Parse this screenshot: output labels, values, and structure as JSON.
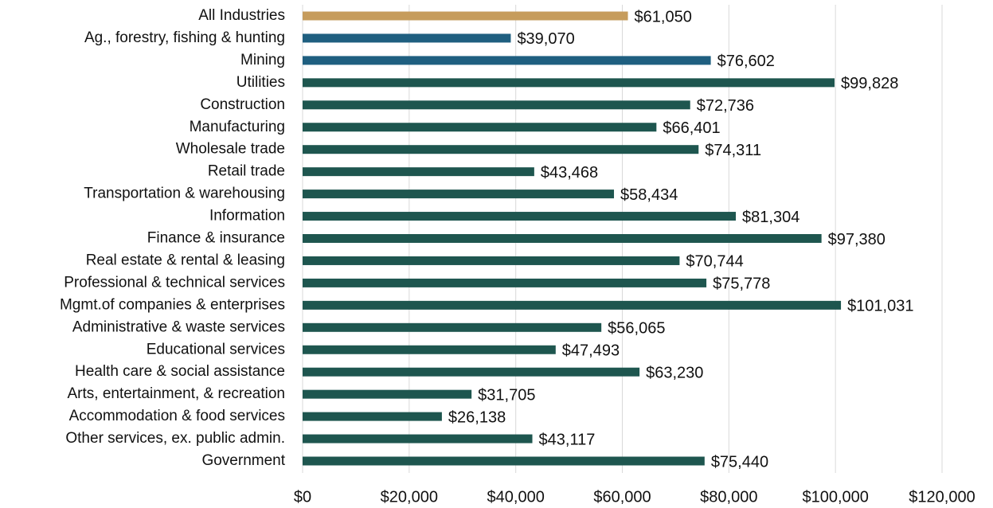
{
  "chart_data": {
    "type": "bar",
    "orientation": "horizontal",
    "categories": [
      "All Industries",
      "Ag., forestry, fishing & hunting",
      "Mining",
      "Utilities",
      "Construction",
      "Manufacturing",
      "Wholesale trade",
      "Retail trade",
      "Transportation & warehousing",
      "Information",
      "Finance & insurance",
      "Real estate & rental & leasing",
      "Professional & technical services",
      "Mgmt.of companies & enterprises",
      "Administrative & waste services",
      "Educational services",
      "Health care & social assistance",
      "Arts, entertainment, & recreation",
      "Accommodation & food services",
      "Other services, ex. public admin.",
      "Government"
    ],
    "values": [
      61050,
      39070,
      76602,
      99828,
      72736,
      66401,
      74311,
      43468,
      58434,
      81304,
      97380,
      70744,
      75778,
      101031,
      56065,
      47493,
      63230,
      31705,
      26138,
      43117,
      75440
    ],
    "value_labels": [
      "$61,050",
      "$39,070",
      "$76,602",
      "$99,828",
      "$72,736",
      "$66,401",
      "$74,311",
      "$43,468",
      "$58,434",
      "$81,304",
      "$97,380",
      "$70,744",
      "$75,778",
      "$101,031",
      "$56,065",
      "$47,493",
      "$63,230",
      "$31,705",
      "$26,138",
      "$43,117",
      "$75,440"
    ],
    "colors": [
      "#c69c5c",
      "#1f5f80",
      "#1f5f80",
      "#1e564f",
      "#1e564f",
      "#1e564f",
      "#1e564f",
      "#1e564f",
      "#1e564f",
      "#1e564f",
      "#1e564f",
      "#1e564f",
      "#1e564f",
      "#1e564f",
      "#1e564f",
      "#1e564f",
      "#1e564f",
      "#1e564f",
      "#1e564f",
      "#1e564f",
      "#1e564f"
    ],
    "xlim": [
      0,
      120000
    ],
    "xticks": [
      {
        "value": 0,
        "label": "$0"
      },
      {
        "value": 20000,
        "label": "$20,000"
      },
      {
        "value": 40000,
        "label": "$40,000"
      },
      {
        "value": 60000,
        "label": "$60,000"
      },
      {
        "value": 80000,
        "label": "$80,000"
      },
      {
        "value": 100000,
        "label": "$100,000"
      },
      {
        "value": 120000,
        "label": "$120,000"
      }
    ],
    "grid": true
  }
}
